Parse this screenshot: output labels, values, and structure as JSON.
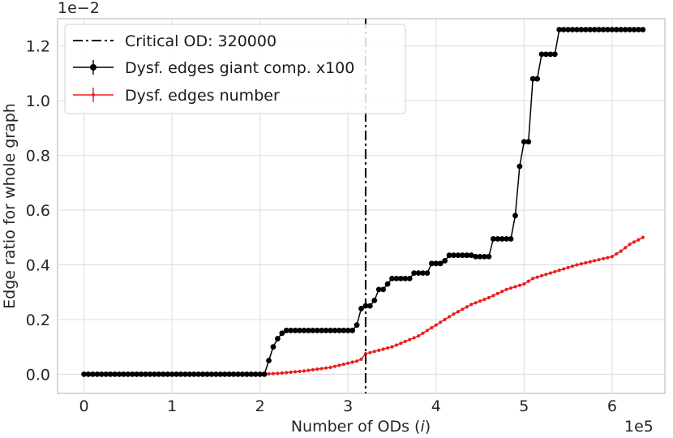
{
  "chart_data": {
    "type": "line",
    "xlabel": "Number of ODs (i)",
    "xlabel_prefix": "Number of ODs (",
    "xlabel_var": "i",
    "xlabel_suffix": ")",
    "ylabel": "Edge ratio for whole graph",
    "x_scale_label": "1e5",
    "y_scale_label": "1e−2",
    "xlim": [
      -0.3,
      6.6
    ],
    "ylim": [
      -0.07,
      1.3
    ],
    "x_ticks": [
      0,
      1,
      2,
      3,
      4,
      5,
      6
    ],
    "x_tick_labels": [
      "0",
      "1",
      "2",
      "3",
      "4",
      "5",
      "6"
    ],
    "y_ticks": [
      0.0,
      0.2,
      0.4,
      0.6,
      0.8,
      1.0,
      1.2
    ],
    "y_tick_labels": [
      "0.0",
      "0.2",
      "0.4",
      "0.6",
      "0.8",
      "1.0",
      "1.2"
    ],
    "grid": true,
    "legend_position": "top-left",
    "critical_line": {
      "name": "Critical OD: 320000",
      "x": 3.2,
      "color": "#000000",
      "style": "dash-dot"
    },
    "series": [
      {
        "name": "Dysf. edges giant comp. x100",
        "color": "#000000",
        "marker": "circle",
        "steps": [
          [
            0,
            0.0
          ],
          [
            2.07,
            0.05
          ],
          [
            2.12,
            0.1
          ],
          [
            2.17,
            0.13
          ],
          [
            2.22,
            0.15
          ],
          [
            2.3,
            0.16
          ],
          [
            3.1,
            0.18
          ],
          [
            3.15,
            0.24
          ],
          [
            3.2,
            0.25
          ],
          [
            3.27,
            0.27
          ],
          [
            3.35,
            0.31
          ],
          [
            3.42,
            0.33
          ],
          [
            3.5,
            0.35
          ],
          [
            3.75,
            0.37
          ],
          [
            3.92,
            0.405
          ],
          [
            4.07,
            0.415
          ],
          [
            4.12,
            0.435
          ],
          [
            4.45,
            0.43
          ],
          [
            4.62,
            0.495
          ],
          [
            4.87,
            0.58
          ],
          [
            4.95,
            0.76
          ],
          [
            5.0,
            0.85
          ],
          [
            5.1,
            1.08
          ],
          [
            5.17,
            1.17
          ],
          [
            5.37,
            1.26
          ],
          [
            6.35,
            1.26
          ]
        ]
      },
      {
        "name": "Dysf. edges number",
        "color": "#e8201e",
        "marker": "dot",
        "points": [
          [
            0,
            0.0
          ],
          [
            2.0,
            0.0
          ],
          [
            2.2,
            0.003
          ],
          [
            2.5,
            0.012
          ],
          [
            2.8,
            0.025
          ],
          [
            3.1,
            0.048
          ],
          [
            3.15,
            0.055
          ],
          [
            3.2,
            0.075
          ],
          [
            3.5,
            0.1
          ],
          [
            3.8,
            0.14
          ],
          [
            4.0,
            0.18
          ],
          [
            4.2,
            0.22
          ],
          [
            4.4,
            0.255
          ],
          [
            4.6,
            0.28
          ],
          [
            4.8,
            0.31
          ],
          [
            5.0,
            0.33
          ],
          [
            5.1,
            0.35
          ],
          [
            5.2,
            0.36
          ],
          [
            5.4,
            0.38
          ],
          [
            5.6,
            0.4
          ],
          [
            5.8,
            0.415
          ],
          [
            6.0,
            0.43
          ],
          [
            6.1,
            0.45
          ],
          [
            6.2,
            0.475
          ],
          [
            6.35,
            0.5
          ]
        ]
      }
    ]
  }
}
